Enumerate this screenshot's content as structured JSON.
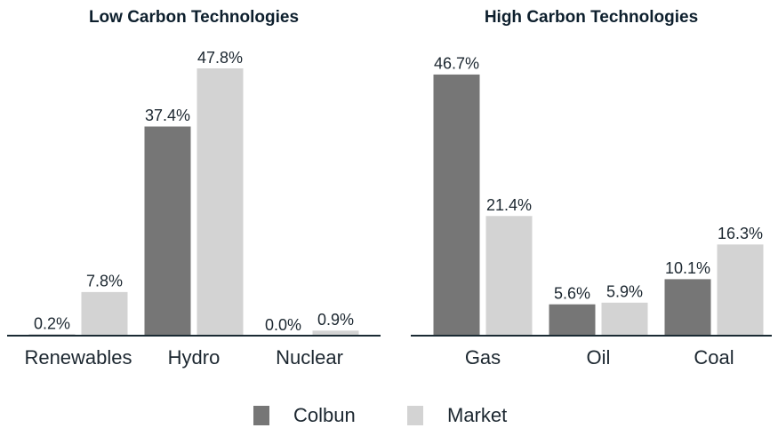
{
  "chart_data": [
    {
      "type": "bar",
      "title": "Low Carbon Technologies",
      "categories": [
        "Renewables",
        "Hydro",
        "Nuclear"
      ],
      "series": [
        {
          "name": "Colbun",
          "color": "#767676",
          "values": [
            0.2,
            37.4,
            0.0
          ],
          "value_labels": [
            "0.2%",
            "37.4%",
            "0.0%"
          ]
        },
        {
          "name": "Market",
          "color": "#d3d3d3",
          "values": [
            7.8,
            47.8,
            0.9
          ],
          "value_labels": [
            "7.8%",
            "47.8%",
            "0.9%"
          ]
        }
      ],
      "legend": "bottom"
    },
    {
      "type": "bar",
      "title": "High Carbon Technologies",
      "categories": [
        "Gas",
        "Oil",
        "Coal"
      ],
      "series": [
        {
          "color": "#767676",
          "values": [
            46.7,
            5.6,
            10.1
          ],
          "value_labels": [
            "46.7%",
            "5.6%",
            "10.1%"
          ]
        },
        {
          "color": "#d3d3d3",
          "values": [
            21.4,
            5.9,
            16.3
          ],
          "value_labels": [
            "21.4%",
            "5.9%",
            "16.3%"
          ]
        }
      ]
    }
  ]
}
